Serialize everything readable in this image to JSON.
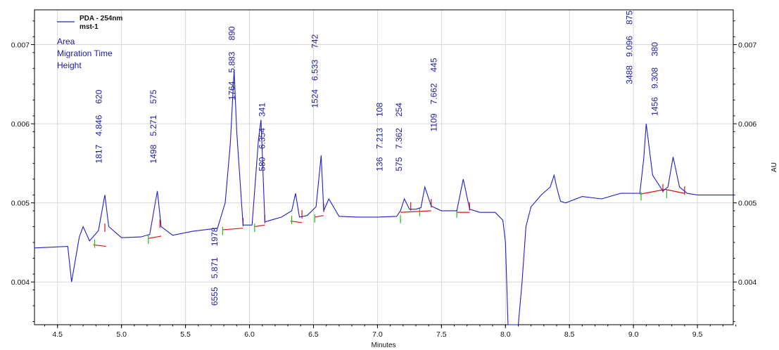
{
  "chart_data": {
    "type": "line",
    "xlabel": "Minutes",
    "ylabel_right": "AU",
    "xlim": [
      4.32,
      9.78
    ],
    "ylim": [
      0.00346,
      0.00744
    ],
    "x_ticks": [
      "4.5",
      "5.0",
      "5.5",
      "6.0",
      "6.5",
      "7.0",
      "7.5",
      "8.0",
      "8.5",
      "9.0",
      "9.5"
    ],
    "x_tick_values": [
      4.5,
      5.0,
      5.5,
      6.0,
      6.5,
      7.0,
      7.5,
      8.0,
      8.5,
      9.0,
      9.5
    ],
    "y_ticks": [
      "0.004",
      "0.005",
      "0.006",
      "0.007"
    ],
    "y_tick_values": [
      0.004,
      0.005,
      0.006,
      0.007
    ],
    "grid": true,
    "legend": {
      "placement": "top-left",
      "series_name": "PDA - 254nm",
      "sample": "mst-1",
      "items": [
        "Area",
        "Migration Time",
        "Height"
      ]
    },
    "colors": {
      "trace": "#1f1fd0",
      "baseline": "#e01010",
      "marker": "#18c018",
      "labels": "#1a1aa6"
    },
    "series": [
      {
        "name": "PDA - 254nm",
        "x": [
          4.32,
          4.58,
          4.59,
          4.61,
          4.67,
          4.7,
          4.75,
          4.82,
          4.87,
          4.9,
          5.0,
          5.15,
          5.22,
          5.28,
          5.31,
          5.4,
          5.55,
          5.75,
          5.81,
          5.85,
          5.88,
          5.9,
          5.95,
          6.02,
          6.07,
          6.09,
          6.12,
          6.25,
          6.33,
          6.36,
          6.39,
          6.45,
          6.52,
          6.56,
          6.58,
          6.62,
          6.7,
          6.85,
          7.0,
          7.15,
          7.18,
          7.21,
          7.25,
          7.3,
          7.34,
          7.37,
          7.42,
          7.5,
          7.62,
          7.67,
          7.72,
          7.8,
          7.92,
          7.98,
          8.0,
          8.02,
          8.06,
          8.1,
          8.13,
          8.16,
          8.2,
          8.28,
          8.35,
          8.38,
          8.4,
          8.43,
          8.47,
          8.6,
          8.75,
          8.9,
          9.0,
          9.05,
          9.08,
          9.1,
          9.15,
          9.23,
          9.27,
          9.31,
          9.36,
          9.42,
          9.5,
          9.6,
          9.78
        ],
        "y": [
          0.00443,
          0.00445,
          0.0043,
          0.004,
          0.00457,
          0.0047,
          0.00452,
          0.00465,
          0.0051,
          0.0047,
          0.00456,
          0.00457,
          0.0046,
          0.00515,
          0.0047,
          0.00459,
          0.00464,
          0.00468,
          0.005,
          0.00575,
          0.00668,
          0.0059,
          0.00472,
          0.00472,
          0.0058,
          0.00605,
          0.00476,
          0.00482,
          0.0049,
          0.00512,
          0.00482,
          0.00484,
          0.00495,
          0.0056,
          0.0049,
          0.00505,
          0.00483,
          0.00482,
          0.00482,
          0.00483,
          0.0049,
          0.00505,
          0.00492,
          0.00492,
          0.00494,
          0.0052,
          0.00496,
          0.0049,
          0.0049,
          0.0053,
          0.00492,
          0.00488,
          0.00488,
          0.00478,
          0.0045,
          0.003,
          0.002,
          0.0028,
          0.004,
          0.0047,
          0.00495,
          0.0051,
          0.0052,
          0.00535,
          0.0052,
          0.00502,
          0.005,
          0.00508,
          0.00505,
          0.00512,
          0.00512,
          0.00512,
          0.00555,
          0.006,
          0.00535,
          0.00515,
          0.0052,
          0.00558,
          0.0052,
          0.00512,
          0.0051,
          0.0051,
          0.0051
        ]
      }
    ],
    "peaks": [
      {
        "migration_time": "4.846",
        "area": "1817",
        "height": "620",
        "x": 4.846,
        "label_y": 0.0055
      },
      {
        "migration_time": "5.271",
        "area": "1498",
        "height": "575",
        "x": 5.271,
        "label_y": 0.0055
      },
      {
        "migration_time": "5.871",
        "area": "6555",
        "height": "1978",
        "x": 5.75,
        "label_y": 0.0037
      },
      {
        "migration_time": "5.883",
        "area": "1764",
        "height": "890",
        "x": 5.883,
        "label_y": 0.0063
      },
      {
        "migration_time": "6.354",
        "area": "580",
        "height": "341",
        "x": 6.12,
        "label_y": 0.0054
      },
      {
        "migration_time": "6.533",
        "area": "1524",
        "height": "742",
        "x": 6.533,
        "label_y": 0.0062
      },
      {
        "migration_time": "7.213",
        "area": "136",
        "height": "108",
        "x": 7.04,
        "label_y": 0.0054
      },
      {
        "migration_time": "7.362",
        "area": "575",
        "height": "254",
        "x": 7.19,
        "label_y": 0.0054
      },
      {
        "migration_time": "7.662",
        "area": "1109",
        "height": "445",
        "x": 7.462,
        "label_y": 0.0059
      },
      {
        "migration_time": "9.096",
        "area": "3488",
        "height": "875",
        "x": 8.99,
        "label_y": 0.0065
      },
      {
        "migration_time": "9.308",
        "area": "1456",
        "height": "380",
        "x": 9.19,
        "label_y": 0.0061
      }
    ],
    "baseline_segments": [
      [
        [
          4.78,
          0.00447
        ],
        [
          4.88,
          0.00445
        ]
      ],
      [
        [
          5.21,
          0.00455
        ],
        [
          5.31,
          0.00458
        ]
      ],
      [
        [
          5.79,
          0.00466
        ],
        [
          5.95,
          0.00468
        ]
      ],
      [
        [
          6.04,
          0.0047
        ],
        [
          6.12,
          0.00472
        ]
      ],
      [
        [
          6.32,
          0.00477
        ],
        [
          6.41,
          0.00475
        ]
      ],
      [
        [
          6.51,
          0.00482
        ],
        [
          6.58,
          0.00484
        ]
      ],
      [
        [
          7.18,
          0.00488
        ],
        [
          7.42,
          0.0049
        ]
      ],
      [
        [
          7.62,
          0.00488
        ],
        [
          7.72,
          0.00488
        ]
      ],
      [
        [
          9.05,
          0.00511
        ],
        [
          9.25,
          0.00517
        ]
      ],
      [
        [
          9.25,
          0.00517
        ],
        [
          9.4,
          0.00512
        ]
      ]
    ],
    "start_markers": [
      4.79,
      5.21,
      5.79,
      6.04,
      6.33,
      6.51,
      7.18,
      7.33,
      7.62,
      9.06,
      9.26
    ],
    "end_markers": [
      4.87,
      5.3,
      5.95,
      6.12,
      6.41,
      6.58,
      7.26,
      7.42,
      7.72,
      9.23,
      9.4
    ]
  }
}
